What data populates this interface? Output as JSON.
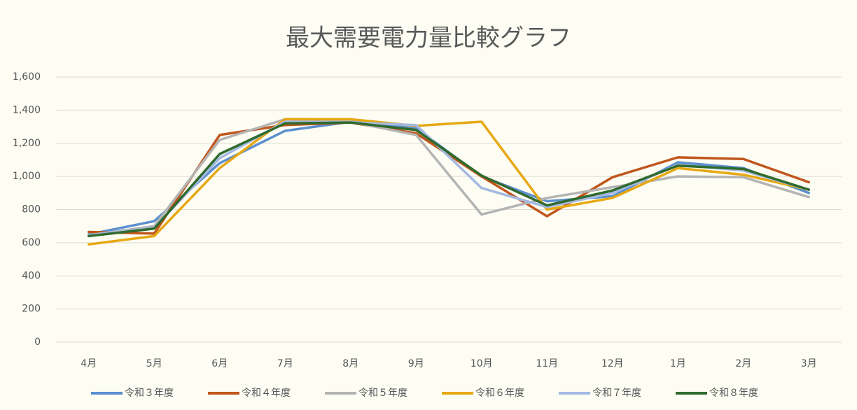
{
  "chart_data": {
    "type": "line",
    "title": "最大需要電力量比較グラフ",
    "categories": [
      "4月",
      "5月",
      "6月",
      "7月",
      "8月",
      "9月",
      "10月",
      "11月",
      "12月",
      "1月",
      "2月",
      "3月"
    ],
    "series": [
      {
        "name": "令和３年度",
        "color": "#5b8fcf",
        "values": [
          650,
          730,
          1080,
          1275,
          1330,
          1290,
          1000,
          850,
          880,
          1085,
          1050,
          900
        ]
      },
      {
        "name": "令和４年度",
        "color": "#c0561c",
        "values": [
          665,
          655,
          1250,
          1310,
          1325,
          1260,
          1000,
          760,
          995,
          1115,
          1105,
          965
        ]
      },
      {
        "name": "令和５年度",
        "color": "#b4b4b4",
        "values": [
          645,
          700,
          1220,
          1345,
          1330,
          1250,
          770,
          870,
          935,
          1000,
          995,
          875
        ]
      },
      {
        "name": "令和６年度",
        "color": "#e6a813",
        "values": [
          590,
          640,
          1050,
          1345,
          1345,
          1305,
          1330,
          800,
          870,
          1050,
          1010,
          920
        ]
      },
      {
        "name": "令和７年度",
        "color": "#a4b9e2",
        "values": [
          645,
          690,
          1110,
          1330,
          1325,
          1310,
          930,
          815,
          900,
          1070,
          1035,
          920
        ]
      },
      {
        "name": "令和８年度",
        "color": "#2f6a2c",
        "values": [
          640,
          685,
          1135,
          1320,
          1325,
          1280,
          1005,
          825,
          915,
          1065,
          1045,
          920
        ]
      }
    ],
    "ylim": [
      0,
      1600
    ],
    "yticks": [
      0,
      200,
      400,
      600,
      800,
      {
        "value": 1000,
        "label": "1,000"
      },
      {
        "value": 1200,
        "label": "1,200"
      },
      {
        "value": 1400,
        "label": "1,400"
      },
      {
        "value": 1600,
        "label": "1,600"
      }
    ],
    "grid": true
  }
}
